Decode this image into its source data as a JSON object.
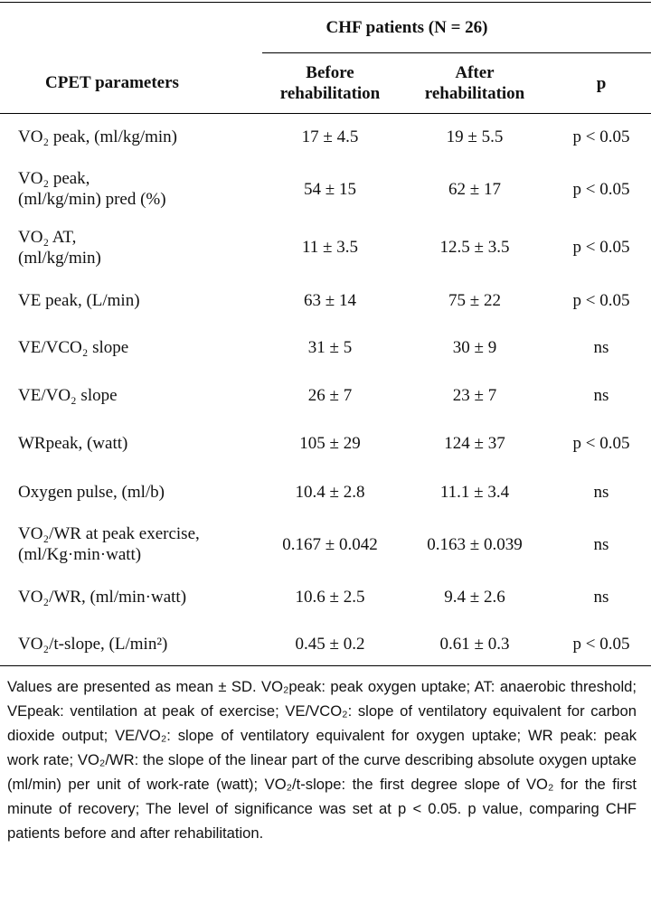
{
  "table": {
    "group_header": "CHF patients (N = 26)",
    "columns": [
      [
        "CPET parameters"
      ],
      [
        "Before",
        "rehabilitation"
      ],
      [
        "After",
        "rehabilitation"
      ],
      [
        "p"
      ]
    ],
    "rows": [
      [
        [
          "VO₂ peak, (ml/kg/min)"
        ],
        "17 ± 4.5",
        "19 ± 5.5",
        "p < 0.05"
      ],
      [
        [
          "VO₂ peak,",
          "(ml/kg/min) pred (%)"
        ],
        "54 ± 15",
        "62 ± 17",
        "p < 0.05"
      ],
      [
        [
          "VO₂ AT,",
          "(ml/kg/min)"
        ],
        "11 ± 3.5",
        "12.5 ± 3.5",
        "p < 0.05"
      ],
      [
        [
          "VE peak, (L/min)"
        ],
        "63 ± 14",
        "75 ± 22",
        "p < 0.05"
      ],
      [
        [
          "VE/VCO₂ slope"
        ],
        "31 ± 5",
        "30 ± 9",
        "ns"
      ],
      [
        [
          "VE/VO₂ slope"
        ],
        "26 ± 7",
        "23 ± 7",
        "ns"
      ],
      [
        [
          "WRpeak, (watt)"
        ],
        "105 ± 29",
        "124 ± 37",
        "p < 0.05"
      ],
      [
        [
          "Oxygen pulse, (ml/b)"
        ],
        "10.4 ± 2.8",
        "11.1 ± 3.4",
        "ns"
      ],
      [
        [
          "VO₂/WR at peak exercise,",
          "(ml/Kg·min·watt)"
        ],
        "0.167 ± 0.042",
        "0.163 ± 0.039",
        "ns"
      ],
      [
        [
          "VO₂/WR, (ml/min·watt)"
        ],
        "10.6 ± 2.5",
        "9.4 ± 2.6",
        "ns"
      ],
      [
        [
          "VO₂/t-slope, (L/min²)"
        ],
        "0.45 ± 0.2",
        "0.61 ± 0.3",
        "p < 0.05"
      ]
    ]
  },
  "footnote": "Values are presented as mean ± SD. VO₂peak: peak oxygen uptake; AT: anaerobic threshold; VEpeak: ventilation at peak of exercise; VE/VCO₂: slope of ventilatory equivalent for carbon dioxide output; VE/VO₂: slope of ventilatory equivalent for oxygen uptake; WR peak: peak work rate; VO₂/WR: the slope of the linear part of the curve describing absolute oxygen uptake (ml/min) per unit of work-rate (watt); VO₂/t-slope: the first degree slope of VO₂ for the first minute of recovery; The level of significance was set at p < 0.05. p value, comparing CHF patients before and after rehabilitation."
}
